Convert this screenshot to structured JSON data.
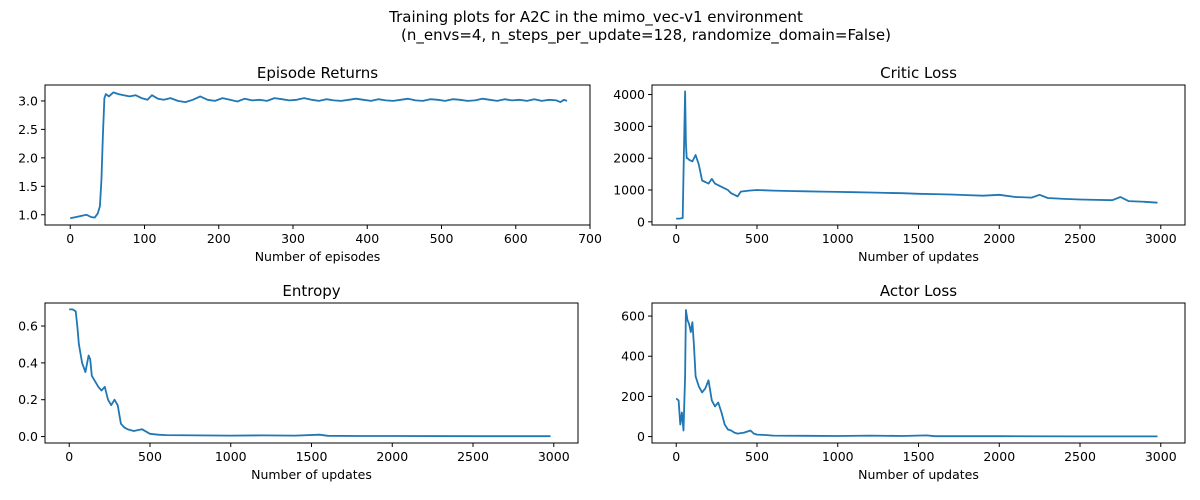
{
  "figure": {
    "title_line1": "Training plots for A2C in the mimo_vec-v1 environment",
    "title_line2": "(n_envs=4, n_steps_per_update=128, randomize_domain=False)",
    "line_color": "#1f77b4"
  },
  "chart_data": [
    {
      "type": "line",
      "title": "Episode Returns",
      "xlabel": "Number of episodes",
      "ylabel": "",
      "xlim": [
        -34,
        700
      ],
      "ylim": [
        0.82,
        3.28
      ],
      "xticks": [
        0,
        100,
        200,
        300,
        400,
        500,
        600,
        700
      ],
      "yticks": [
        1.0,
        1.5,
        2.0,
        2.5,
        3.0
      ],
      "ytick_labels": [
        "1.0",
        "1.5",
        "2.0",
        "2.5",
        "3.0"
      ],
      "grid": false,
      "x": [
        0,
        8,
        15,
        22,
        28,
        33,
        37,
        40,
        42,
        44,
        46,
        48,
        52,
        58,
        65,
        72,
        80,
        88,
        96,
        104,
        110,
        118,
        126,
        135,
        145,
        155,
        165,
        175,
        185,
        195,
        205,
        215,
        225,
        235,
        245,
        255,
        265,
        275,
        285,
        295,
        305,
        315,
        325,
        335,
        345,
        355,
        365,
        375,
        385,
        395,
        405,
        415,
        425,
        435,
        445,
        455,
        465,
        475,
        485,
        495,
        505,
        515,
        525,
        535,
        545,
        555,
        565,
        575,
        585,
        595,
        605,
        615,
        625,
        635,
        645,
        655,
        660,
        665,
        669
      ],
      "y": [
        0.94,
        0.96,
        0.98,
        1.0,
        0.96,
        0.95,
        1.02,
        1.15,
        1.6,
        2.4,
        3.05,
        3.12,
        3.08,
        3.15,
        3.12,
        3.1,
        3.08,
        3.1,
        3.05,
        3.02,
        3.1,
        3.04,
        3.02,
        3.05,
        3.0,
        2.98,
        3.02,
        3.08,
        3.02,
        3.0,
        3.05,
        3.02,
        2.99,
        3.04,
        3.01,
        3.02,
        3.0,
        3.05,
        3.03,
        3.01,
        3.02,
        3.05,
        3.02,
        3.0,
        3.03,
        3.01,
        3.0,
        3.02,
        3.04,
        3.02,
        3.0,
        3.03,
        3.01,
        3.0,
        3.02,
        3.04,
        3.01,
        3.0,
        3.03,
        3.02,
        3.0,
        3.03,
        3.02,
        3.0,
        3.01,
        3.04,
        3.02,
        3.0,
        3.03,
        3.01,
        3.02,
        3.0,
        3.03,
        3.0,
        3.02,
        3.01,
        2.98,
        3.02,
        3.0
      ]
    },
    {
      "type": "line",
      "title": "Critic Loss",
      "xlabel": "Number of updates",
      "ylabel": "",
      "xlim": [
        -150,
        3150
      ],
      "ylim": [
        -100,
        4300
      ],
      "xticks": [
        0,
        500,
        1000,
        1500,
        2000,
        2500,
        3000
      ],
      "yticks": [
        0,
        1000,
        2000,
        3000,
        4000
      ],
      "ytick_labels": [
        "0",
        "1000",
        "2000",
        "3000",
        "4000"
      ],
      "grid": false,
      "x": [
        0,
        20,
        40,
        45,
        50,
        55,
        60,
        65,
        70,
        80,
        100,
        120,
        140,
        160,
        180,
        200,
        220,
        240,
        260,
        280,
        300,
        320,
        340,
        360,
        380,
        400,
        450,
        500,
        600,
        700,
        800,
        900,
        1000,
        1100,
        1200,
        1300,
        1400,
        1500,
        1600,
        1700,
        1800,
        1900,
        2000,
        2100,
        2200,
        2250,
        2300,
        2400,
        2500,
        2600,
        2700,
        2750,
        2800,
        2900,
        2980
      ],
      "y": [
        100,
        100,
        120,
        1500,
        2800,
        4100,
        2500,
        2000,
        2000,
        1950,
        1900,
        2100,
        1800,
        1300,
        1250,
        1200,
        1350,
        1200,
        1150,
        1100,
        1050,
        1000,
        900,
        850,
        800,
        950,
        980,
        1000,
        980,
        970,
        960,
        950,
        940,
        930,
        920,
        910,
        900,
        880,
        870,
        860,
        840,
        820,
        850,
        780,
        760,
        850,
        750,
        720,
        700,
        690,
        680,
        780,
        650,
        630,
        600
      ]
    },
    {
      "type": "line",
      "title": "Entropy",
      "xlabel": "Number of updates",
      "ylabel": "",
      "xlim": [
        -150,
        3150
      ],
      "ylim": [
        -0.035,
        0.725
      ],
      "xticks": [
        0,
        500,
        1000,
        1500,
        2000,
        2500,
        3000
      ],
      "yticks": [
        0.0,
        0.2,
        0.4,
        0.6
      ],
      "ytick_labels": [
        "0.0",
        "0.2",
        "0.4",
        "0.6"
      ],
      "grid": false,
      "x": [
        0,
        20,
        40,
        50,
        60,
        80,
        100,
        120,
        130,
        140,
        160,
        180,
        200,
        220,
        240,
        260,
        280,
        300,
        320,
        340,
        360,
        400,
        450,
        500,
        550,
        600,
        800,
        1000,
        1200,
        1400,
        1550,
        1600,
        1800,
        2000,
        2500,
        2980
      ],
      "y": [
        0.69,
        0.69,
        0.68,
        0.6,
        0.5,
        0.4,
        0.35,
        0.44,
        0.42,
        0.33,
        0.3,
        0.27,
        0.25,
        0.27,
        0.2,
        0.17,
        0.2,
        0.17,
        0.07,
        0.05,
        0.04,
        0.03,
        0.04,
        0.015,
        0.01,
        0.008,
        0.006,
        0.005,
        0.006,
        0.005,
        0.01,
        0.004,
        0.003,
        0.003,
        0.002,
        0.002
      ]
    },
    {
      "type": "line",
      "title": "Actor Loss",
      "xlabel": "Number of updates",
      "ylabel": "",
      "xlim": [
        -150,
        3150
      ],
      "ylim": [
        -32,
        665
      ],
      "xticks": [
        0,
        500,
        1000,
        1500,
        2000,
        2500,
        3000
      ],
      "yticks": [
        0,
        200,
        400,
        600
      ],
      "ytick_labels": [
        "0",
        "200",
        "400",
        "600"
      ],
      "grid": false,
      "x": [
        0,
        15,
        25,
        35,
        45,
        55,
        60,
        70,
        80,
        90,
        100,
        110,
        120,
        140,
        160,
        180,
        200,
        220,
        240,
        260,
        280,
        300,
        320,
        340,
        360,
        380,
        420,
        460,
        480,
        500,
        550,
        600,
        800,
        1000,
        1200,
        1400,
        1550,
        1600,
        1800,
        2000,
        2500,
        2980
      ],
      "y": [
        190,
        180,
        60,
        120,
        30,
        300,
        630,
        580,
        560,
        520,
        570,
        450,
        300,
        250,
        220,
        240,
        280,
        180,
        150,
        170,
        120,
        60,
        35,
        30,
        20,
        15,
        20,
        30,
        15,
        10,
        8,
        5,
        4,
        3,
        5,
        3,
        6,
        2,
        2,
        2,
        1,
        1
      ]
    }
  ]
}
